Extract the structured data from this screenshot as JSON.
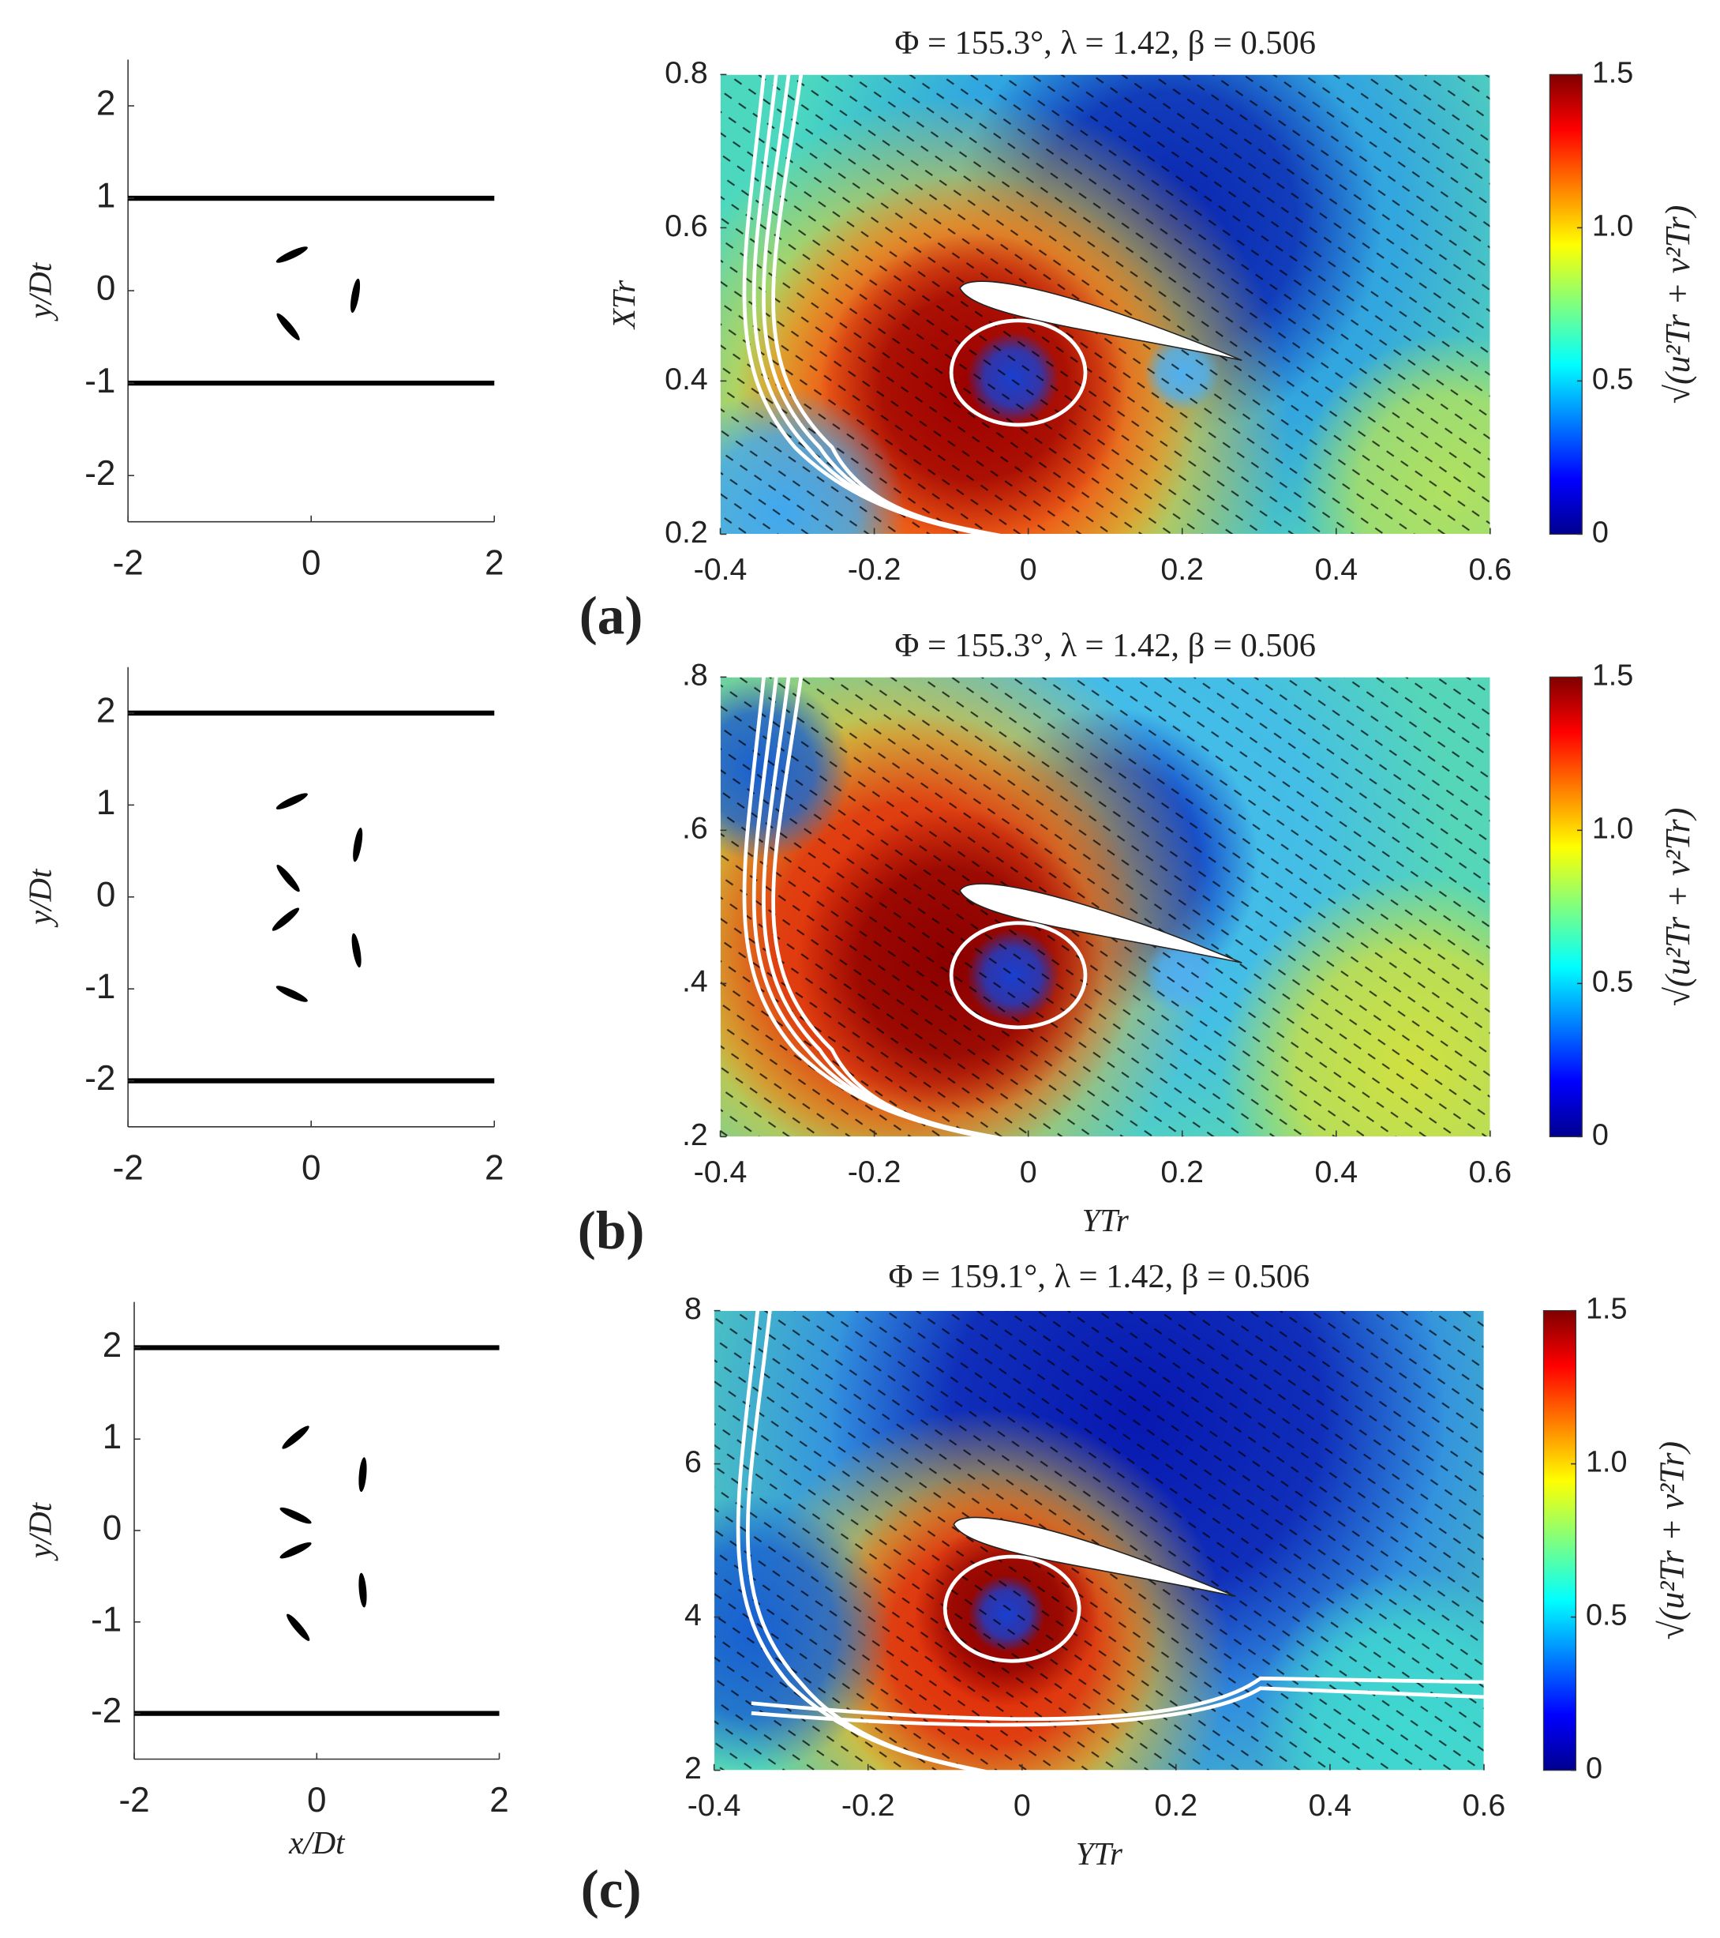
{
  "chart_data": [
    {
      "type": "line",
      "x": [
        -2,
        2
      ],
      "xlim": [
        -2,
        2
      ],
      "ylim": [
        -2.5,
        2.5
      ],
      "xticks": [
        -2,
        0,
        2
      ],
      "yticks": [
        -2,
        -1,
        0,
        1,
        2
      ],
      "ylabel": "y/Dt",
      "series": [
        {
          "color": "#000000",
          "values": [
            1,
            1
          ]
        },
        {
          "color": "#000000",
          "values": [
            -1,
            -1
          ]
        }
      ]
    },
    {
      "type": "heatmap",
      "title": "Φ = 155.3°, λ = 1.42, β = 0.506",
      "ylabel": "XTr",
      "panel_label": "(a)",
      "xlim": [
        -0.4,
        0.6
      ],
      "ylim": [
        0.2,
        0.8
      ],
      "xticks": [
        -0.4,
        -0.2,
        0,
        0.2,
        0.4,
        0.6
      ],
      "yticks": [
        0.2,
        0.4,
        0.6,
        0.8
      ],
      "colorbar": {
        "label": "√(u²Tr + v²Tr)",
        "clim": [
          0,
          1.5
        ],
        "ticks": [
          0,
          0.5,
          {
            "value": 1,
            "label": "1.0"
          },
          1.5
        ]
      }
    },
    {
      "type": "line",
      "x": [
        -2,
        2
      ],
      "xlim": [
        -2,
        2
      ],
      "ylim": [
        -2.5,
        2.5
      ],
      "xticks": [
        -2,
        0,
        2
      ],
      "yticks": [
        -2,
        -1,
        0,
        1,
        2
      ],
      "ylabel": "y/Dt",
      "series": [
        {
          "color": "#000000",
          "values": [
            2,
            2
          ]
        },
        {
          "color": "#000000",
          "values": [
            -2,
            -2
          ]
        }
      ]
    },
    {
      "type": "heatmap",
      "title": "Φ = 155.3°, λ = 1.42, β = 0.506",
      "xlabel": "YTr",
      "panel_label": "(b)",
      "xlim": [
        -0.4,
        0.6
      ],
      "ylim": [
        0.2,
        0.8
      ],
      "xticks": [
        -0.4,
        -0.2,
        0,
        0.2,
        0.4,
        0.6
      ],
      "yticks": [
        {
          "value": 0.2,
          "label": ".2"
        },
        {
          "value": 0.4,
          "label": ".4"
        },
        {
          "value": 0.6,
          "label": ".6"
        },
        {
          "value": 0.8,
          "label": ".8"
        }
      ],
      "colorbar": {
        "label": "√(u²Tr + v²Tr)",
        "clim": [
          0,
          1.5
        ],
        "ticks": [
          0,
          0.5,
          {
            "value": 1,
            "label": "1.0"
          },
          1.5
        ]
      }
    },
    {
      "type": "line",
      "x": [
        -2,
        2
      ],
      "xlim": [
        -2,
        2
      ],
      "ylim": [
        -2.5,
        2.5
      ],
      "xticks": [
        -2,
        0,
        2
      ],
      "yticks": [
        -2,
        -1,
        0,
        1,
        2
      ],
      "ylabel": "y/Dt",
      "xlabel": "x/Dt",
      "series": [
        {
          "color": "#000000",
          "values": [
            2,
            2
          ]
        },
        {
          "color": "#000000",
          "values": [
            -2,
            -2
          ]
        }
      ]
    },
    {
      "type": "heatmap",
      "title": "Φ = 159.1°, λ = 1.42, β = 0.506",
      "xlabel": "YTr",
      "panel_label": "(c)",
      "xlim": [
        -0.4,
        0.6
      ],
      "ylim": [
        0.2,
        0.8
      ],
      "xticks": [
        -0.4,
        -0.2,
        0,
        0.2,
        0.4,
        0.6
      ],
      "yticks": [
        {
          "value": 0.2,
          "label": "2"
        },
        {
          "value": 0.4,
          "label": "4"
        },
        {
          "value": 0.6,
          "label": "6"
        },
        {
          "value": 0.8,
          "label": "8"
        }
      ],
      "colorbar": {
        "label": "√(u²Tr + v²Tr)",
        "clim": [
          0,
          1.5
        ],
        "ticks": [
          0,
          0.5,
          {
            "value": 1,
            "label": "1.0"
          },
          1.5
        ]
      }
    }
  ]
}
